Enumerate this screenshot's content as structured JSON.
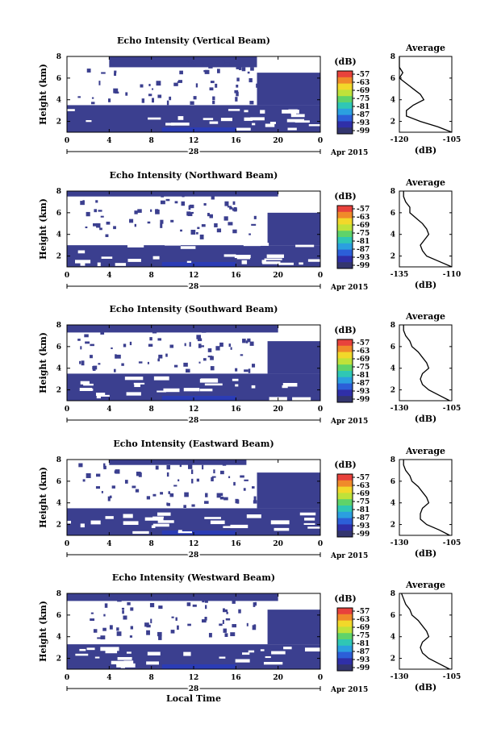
{
  "chart_data": [
    {
      "type": "heatmap",
      "title": "Echo Intensity (Vertical Beam)",
      "ylabel": "Height (km)",
      "xlim": [
        0,
        24
      ],
      "ylim": [
        1,
        8
      ],
      "x_ticks": [
        "0",
        "4",
        "8",
        "12",
        "16",
        "20",
        "0"
      ],
      "y_ticks": [
        "2",
        "4",
        "6",
        "8"
      ],
      "date_label": "28",
      "date_suffix": "Apr 2015",
      "colorbar": {
        "unit": "(dB)",
        "ticks": [
          "-57",
          "-63",
          "-69",
          "-75",
          "-81",
          "-87",
          "-93",
          "-99"
        ]
      },
      "filled_regions": [
        {
          "hour": [
            0,
            24
          ],
          "height_km": [
            1,
            3.5
          ]
        },
        {
          "hour": [
            18,
            24
          ],
          "height_km": [
            3.5,
            6.5
          ]
        },
        {
          "hour": [
            4,
            18
          ],
          "height_km": [
            7,
            8
          ]
        }
      ],
      "profile": {
        "title": "Average",
        "xlabel": "(dB)",
        "x_ticks": [
          "-120",
          "-105"
        ],
        "xlim": [
          -120,
          -105
        ],
        "y_ticks": [
          "2",
          "4",
          "6",
          "8"
        ],
        "ylim": [
          1,
          8
        ],
        "height_km": [
          1.0,
          1.5,
          2.0,
          2.5,
          3.0,
          3.5,
          4.0,
          4.5,
          5.0,
          5.5,
          6.0,
          6.5,
          7.0,
          7.5,
          8.0
        ],
        "db": [
          -105,
          -109,
          -114,
          -118,
          -118,
          -116,
          -113,
          -114,
          -116,
          -118,
          -120,
          -119,
          -120,
          -120,
          -120
        ]
      }
    },
    {
      "type": "heatmap",
      "title": "Echo Intensity (Northward Beam)",
      "ylabel": "Height (km)",
      "xlim": [
        0,
        24
      ],
      "ylim": [
        1,
        8
      ],
      "x_ticks": [
        "0",
        "4",
        "8",
        "12",
        "16",
        "20",
        "0"
      ],
      "y_ticks": [
        "2",
        "4",
        "6",
        "8"
      ],
      "date_label": "28",
      "date_suffix": "Apr 2015",
      "colorbar": {
        "unit": "(dB)",
        "ticks": [
          "-57",
          "-63",
          "-69",
          "-75",
          "-81",
          "-87",
          "-93",
          "-99"
        ]
      },
      "filled_regions": [
        {
          "hour": [
            0,
            24
          ],
          "height_km": [
            1,
            3.0
          ]
        },
        {
          "hour": [
            19,
            24
          ],
          "height_km": [
            3.0,
            6.0
          ]
        },
        {
          "hour": [
            0,
            20
          ],
          "height_km": [
            7.5,
            8
          ]
        }
      ],
      "profile": {
        "title": "Average",
        "xlabel": "(dB)",
        "x_ticks": [
          "-135",
          "-110"
        ],
        "xlim": [
          -135,
          -110
        ],
        "y_ticks": [
          "2",
          "4",
          "6",
          "8"
        ],
        "ylim": [
          1,
          8
        ],
        "height_km": [
          1.0,
          1.5,
          2.0,
          2.5,
          3.0,
          3.5,
          4.0,
          4.5,
          5.0,
          5.5,
          6.0,
          6.5,
          7.0,
          7.5,
          8.0
        ],
        "db": [
          -110,
          -116,
          -122,
          -124,
          -125,
          -123,
          -121,
          -122,
          -124,
          -127,
          -130,
          -130,
          -132,
          -133,
          -133
        ]
      }
    },
    {
      "type": "heatmap",
      "title": "Echo Intensity (Southward Beam)",
      "ylabel": "Height (km)",
      "xlim": [
        0,
        24
      ],
      "ylim": [
        1,
        8
      ],
      "x_ticks": [
        "0",
        "4",
        "8",
        "12",
        "16",
        "20",
        "0"
      ],
      "y_ticks": [
        "2",
        "4",
        "6",
        "8"
      ],
      "date_label": "28",
      "date_suffix": "Apr 2015",
      "colorbar": {
        "unit": "(dB)",
        "ticks": [
          "-57",
          "-63",
          "-69",
          "-75",
          "-81",
          "-87",
          "-93",
          "-99"
        ]
      },
      "filled_regions": [
        {
          "hour": [
            0,
            24
          ],
          "height_km": [
            1,
            3.5
          ]
        },
        {
          "hour": [
            19,
            24
          ],
          "height_km": [
            3.5,
            6.5
          ]
        },
        {
          "hour": [
            0,
            20
          ],
          "height_km": [
            7.3,
            8
          ]
        }
      ],
      "profile": {
        "title": "Average",
        "xlabel": "(dB)",
        "x_ticks": [
          "-130",
          "-105"
        ],
        "xlim": [
          -130,
          -105
        ],
        "y_ticks": [
          "2",
          "4",
          "6",
          "8"
        ],
        "ylim": [
          1,
          8
        ],
        "height_km": [
          1.0,
          1.5,
          2.0,
          2.5,
          3.0,
          3.5,
          4.0,
          4.5,
          5.0,
          5.5,
          6.0,
          6.5,
          7.0,
          7.5,
          8.0
        ],
        "db": [
          -106,
          -111,
          -116,
          -119,
          -120,
          -119,
          -116,
          -117,
          -119,
          -121,
          -124,
          -125,
          -127,
          -128,
          -128
        ]
      }
    },
    {
      "type": "heatmap",
      "title": "Echo Intensity (Eastward Beam)",
      "ylabel": "Height (km)",
      "xlim": [
        0,
        24
      ],
      "ylim": [
        1,
        8
      ],
      "x_ticks": [
        "0",
        "4",
        "8",
        "12",
        "16",
        "20",
        "0"
      ],
      "y_ticks": [
        "2",
        "4",
        "6",
        "8"
      ],
      "date_label": "28",
      "date_suffix": "Apr 2015",
      "colorbar": {
        "unit": "(dB)",
        "ticks": [
          "-57",
          "-63",
          "-69",
          "-75",
          "-81",
          "-87",
          "-93",
          "-99"
        ]
      },
      "filled_regions": [
        {
          "hour": [
            0,
            24
          ],
          "height_km": [
            1,
            3.5
          ]
        },
        {
          "hour": [
            18,
            24
          ],
          "height_km": [
            3.5,
            6.8
          ]
        },
        {
          "hour": [
            4,
            17
          ],
          "height_km": [
            7.5,
            8
          ]
        }
      ],
      "profile": {
        "title": "Average",
        "xlabel": "(dB)",
        "x_ticks": [
          "-130",
          "-105"
        ],
        "xlim": [
          -130,
          -105
        ],
        "y_ticks": [
          "2",
          "4",
          "6",
          "8"
        ],
        "ylim": [
          1,
          8
        ],
        "height_km": [
          1.0,
          1.5,
          2.0,
          2.5,
          3.0,
          3.5,
          4.0,
          4.5,
          5.0,
          5.5,
          6.0,
          6.5,
          7.0,
          7.5,
          8.0
        ],
        "db": [
          -106,
          -111,
          -117,
          -120,
          -120,
          -119,
          -116,
          -117,
          -119,
          -121,
          -124,
          -125,
          -127,
          -128,
          -128
        ]
      }
    },
    {
      "type": "heatmap",
      "title": "Echo Intensity (Westward Beam)",
      "ylabel": "Height (km)",
      "xlim": [
        0,
        24
      ],
      "ylim": [
        1,
        8
      ],
      "x_ticks": [
        "0",
        "4",
        "8",
        "12",
        "16",
        "20",
        "0"
      ],
      "y_ticks": [
        "2",
        "4",
        "6",
        "8"
      ],
      "date_label": "28",
      "date_suffix": "Apr 2015",
      "xlabel": "Local Time",
      "colorbar": {
        "unit": "(dB)",
        "ticks": [
          "-57",
          "-63",
          "-69",
          "-75",
          "-81",
          "-87",
          "-93",
          "-99"
        ]
      },
      "filled_regions": [
        {
          "hour": [
            0,
            24
          ],
          "height_km": [
            1,
            3.3
          ]
        },
        {
          "hour": [
            19,
            24
          ],
          "height_km": [
            3.3,
            6.5
          ]
        },
        {
          "hour": [
            0,
            20
          ],
          "height_km": [
            7.3,
            8
          ]
        }
      ],
      "profile": {
        "title": "Average",
        "xlabel": "(dB)",
        "x_ticks": [
          "-130",
          "-105"
        ],
        "xlim": [
          -130,
          -105
        ],
        "y_ticks": [
          "2",
          "4",
          "6",
          "8"
        ],
        "ylim": [
          1,
          8
        ],
        "height_km": [
          1.0,
          1.5,
          2.0,
          2.5,
          3.0,
          3.5,
          4.0,
          4.5,
          5.0,
          5.5,
          6.0,
          6.5,
          7.0,
          7.5,
          8.0
        ],
        "db": [
          -106,
          -111,
          -116,
          -119,
          -120,
          -119,
          -116,
          -117,
          -119,
          -121,
          -124,
          -125,
          -127,
          -128,
          -129
        ]
      }
    }
  ],
  "colors": {
    "fill": "#3b3f8f",
    "deep": "#1f3ad6",
    "colorbar": [
      "#e8423c",
      "#f08a2a",
      "#f2d82a",
      "#bfe23a",
      "#5fd36a",
      "#2fc7b5",
      "#2b9fe0",
      "#2c5fd8",
      "#2f2fa8",
      "#33356e"
    ]
  }
}
